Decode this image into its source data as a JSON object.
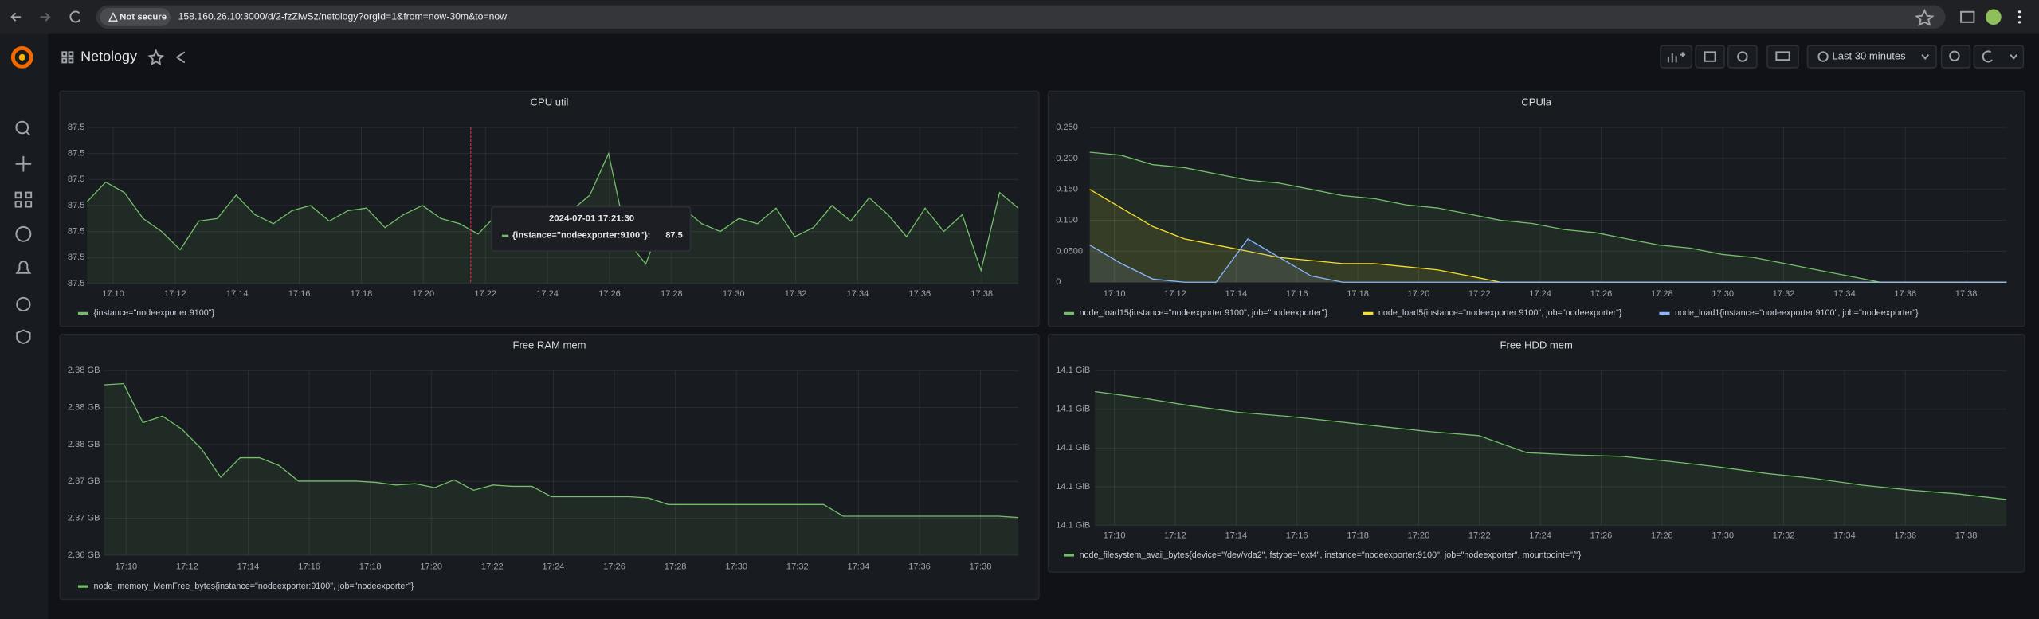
{
  "browser": {
    "not_secure": "Not secure",
    "url": "158.160.26.10:3000/d/2-fzZlwSz/netology?orgId=1&from=now-30m&to=now"
  },
  "dashboard": {
    "title": "Netology",
    "time_range": "Last 30 minutes"
  },
  "panels": [
    {
      "type": "line",
      "title": "CPU util",
      "fill": true,
      "ylim": [
        87.46,
        87.52
      ],
      "yticks": [
        {
          "value": 87.46,
          "label": "87.5"
        },
        {
          "value": 87.47,
          "label": "87.5"
        },
        {
          "value": 87.48,
          "label": "87.5"
        },
        {
          "value": 87.49,
          "label": "87.5"
        },
        {
          "value": 87.5,
          "label": "87.5"
        },
        {
          "value": 87.51,
          "label": "87.5"
        },
        {
          "value": 87.52,
          "label": "87.5"
        }
      ],
      "xticks": [
        "17:10",
        "17:12",
        "17:14",
        "17:16",
        "17:18",
        "17:20",
        "17:22",
        "17:24",
        "17:26",
        "17:28",
        "17:30",
        "17:32",
        "17:34",
        "17:36",
        "17:38"
      ],
      "series": [
        {
          "name": "{instance=\"nodeexporter:9100\"}",
          "color": "#73bf69",
          "values": [
            87.4915,
            87.499,
            87.495,
            87.485,
            87.48,
            87.473,
            87.484,
            87.485,
            87.494,
            87.4865,
            87.483,
            87.488,
            87.49,
            87.484,
            87.488,
            87.489,
            87.4815,
            87.4865,
            87.49,
            87.485,
            87.483,
            87.479,
            87.4865,
            87.474,
            87.483,
            87.485,
            87.488,
            87.494,
            87.51,
            87.4765,
            87.4675,
            87.4865,
            87.489,
            87.483,
            87.48,
            87.485,
            87.483,
            87.489,
            87.478,
            87.4815,
            87.49,
            87.484,
            87.493,
            87.4865,
            87.478,
            87.489,
            87.48,
            87.4865,
            87.465,
            87.495,
            87.489
          ]
        }
      ],
      "tooltip": {
        "time": "2024-07-01 17:21:30",
        "label": "{instance=\"nodeexporter:9100\"}:",
        "value": 87.5
      }
    },
    {
      "type": "line",
      "title": "CPUla",
      "fill": true,
      "ylim": [
        0,
        0.25
      ],
      "yticks": [
        0,
        {
          "value": 0.05,
          "label": "0.0500"
        },
        {
          "value": 0.1,
          "label": "0.100"
        },
        {
          "value": 0.15,
          "label": "0.150"
        },
        {
          "value": 0.2,
          "label": "0.200"
        },
        {
          "value": 0.25,
          "label": "0.250"
        }
      ],
      "xticks": [
        "17:10",
        "17:12",
        "17:14",
        "17:16",
        "17:18",
        "17:20",
        "17:22",
        "17:24",
        "17:26",
        "17:28",
        "17:30",
        "17:32",
        "17:34",
        "17:36",
        "17:38"
      ],
      "series": [
        {
          "name": "node_load15{instance=\"nodeexporter:9100\", job=\"nodeexporter\"}",
          "color": "#73bf69",
          "values": [
            0.21,
            0.205,
            0.19,
            0.185,
            0.175,
            0.165,
            0.16,
            0.15,
            0.14,
            0.135,
            0.125,
            0.12,
            0.11,
            0.1,
            0.095,
            0.085,
            0.08,
            0.07,
            0.06,
            0.055,
            0.045,
            0.04,
            0.03,
            0.02,
            0.01,
            0,
            0,
            0,
            0,
            0
          ]
        },
        {
          "name": "node_load5{instance=\"nodeexporter:9100\", job=\"nodeexporter\"}",
          "color": "#fade2a",
          "values": [
            0.15,
            0.12,
            0.09,
            0.07,
            0.06,
            0.05,
            0.04,
            0.035,
            0.03,
            0.03,
            0.025,
            0.02,
            0.01,
            0,
            0,
            0,
            0,
            0,
            0,
            0,
            0,
            0,
            0,
            0,
            0,
            0,
            0,
            0,
            0,
            0
          ]
        },
        {
          "name": "node_load1{instance=\"nodeexporter:9100\", job=\"nodeexporter\"}",
          "color": "#8ab8ff",
          "values": [
            0.06,
            0.03,
            0.005,
            0,
            0,
            0.07,
            0.04,
            0.01,
            0,
            0,
            0,
            0,
            0,
            0,
            0,
            0,
            0,
            0,
            0,
            0,
            0,
            0,
            0,
            0,
            0,
            0,
            0,
            0,
            0,
            0
          ]
        }
      ]
    },
    {
      "type": "line",
      "title": "Free RAM mem",
      "fill": true,
      "ylim": [
        2.364,
        2.384
      ],
      "yticks": [
        {
          "value": 2.364,
          "label": "2.36 GB"
        },
        {
          "value": 2.368,
          "label": "2.37 GB"
        },
        {
          "value": 2.372,
          "label": "2.37 GB"
        },
        {
          "value": 2.376,
          "label": "2.38 GB"
        },
        {
          "value": 2.38,
          "label": "2.38 GB"
        },
        {
          "value": 2.384,
          "label": "2.38 GB"
        }
      ],
      "xticks": [
        "17:10",
        "17:12",
        "17:14",
        "17:16",
        "17:18",
        "17:20",
        "17:22",
        "17:24",
        "17:26",
        "17:28",
        "17:30",
        "17:32",
        "17:34",
        "17:36",
        "17:38"
      ],
      "series": [
        {
          "name": "node_memory_MemFree_bytes{instance=\"nodeexporter:9100\", job=\"nodeexporter\"}",
          "color": "#73bf69",
          "values": [
            2.38245,
            2.38259,
            2.37837,
            2.37907,
            2.37766,
            2.37555,
            2.37245,
            2.37456,
            2.37456,
            2.37372,
            2.37203,
            2.37203,
            2.37203,
            2.37203,
            2.37189,
            2.37161,
            2.37175,
            2.37132,
            2.37217,
            2.37104,
            2.37161,
            2.37146,
            2.37146,
            2.37034,
            2.37034,
            2.37034,
            2.37034,
            2.37034,
            2.3702,
            2.36949,
            2.36949,
            2.36949,
            2.36949,
            2.36949,
            2.36949,
            2.36949,
            2.36949,
            2.36949,
            2.36823,
            2.36823,
            2.36823,
            2.36823,
            2.36823,
            2.36823,
            2.36823,
            2.36823,
            2.36823,
            2.36808
          ]
        }
      ]
    },
    {
      "type": "line",
      "title": "Free HDD mem",
      "fill": true,
      "ylim": [
        14.06,
        14.1
      ],
      "yticks": [
        {
          "value": 14.06,
          "label": "14.1 GiB"
        },
        {
          "value": 14.07,
          "label": "14.1 GiB"
        },
        {
          "value": 14.08,
          "label": "14.1 GiB"
        },
        {
          "value": 14.09,
          "label": "14.1 GiB"
        },
        {
          "value": 14.1,
          "label": "14.1 GiB"
        }
      ],
      "xticks": [
        "17:10",
        "17:12",
        "17:14",
        "17:16",
        "17:18",
        "17:20",
        "17:22",
        "17:24",
        "17:26",
        "17:28",
        "17:30",
        "17:32",
        "17:34",
        "17:36",
        "17:38"
      ],
      "series": [
        {
          "name": "node_filesystem_avail_bytes{device=\"/dev/vda2\", fstype=\"ext4\", instance=\"nodeexporter:9100\", job=\"nodeexporter\", mountpoint=\"/\"}",
          "color": "#73bf69",
          "values": [
            14.0946,
            14.0929,
            14.0909,
            14.0892,
            14.0882,
            14.0869,
            14.0855,
            14.0842,
            14.0832,
            14.0788,
            14.0782,
            14.0778,
            14.0765,
            14.0751,
            14.0734,
            14.0721,
            14.0704,
            14.0691,
            14.0681,
            14.0667
          ]
        }
      ]
    }
  ]
}
